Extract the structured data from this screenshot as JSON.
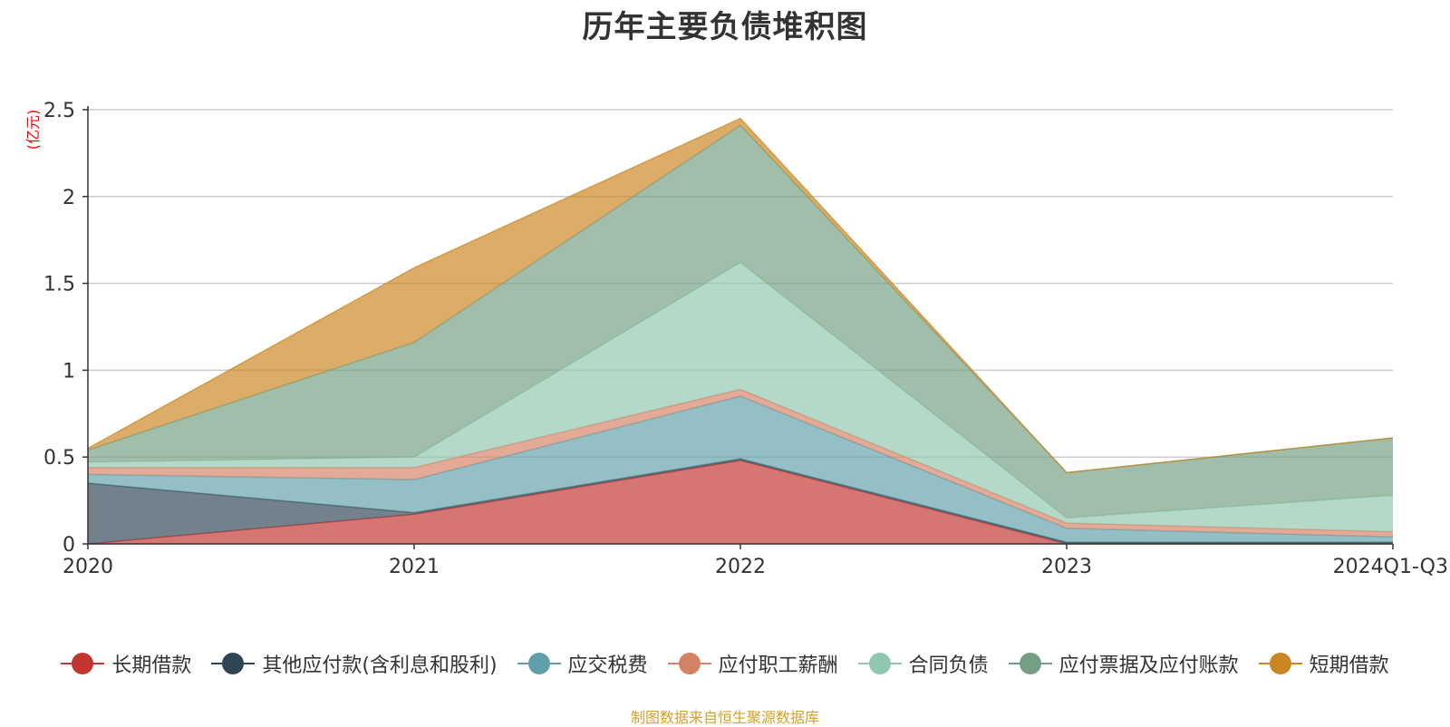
{
  "chart_data": {
    "type": "area",
    "stacked": true,
    "title": "历年主要负债堆积图",
    "ylabel": "(亿元)",
    "xlabel": "",
    "categories": [
      "2020",
      "2021",
      "2022",
      "2023",
      "2024Q1-Q3"
    ],
    "ylim": [
      0,
      2.5
    ],
    "yticks": [
      "0",
      "0.5",
      "1",
      "1.5",
      "2",
      "2.5"
    ],
    "grid": true,
    "legend_position": "bottom",
    "series": [
      {
        "name": "长期借款",
        "color": "#c23531",
        "values": [
          0.0,
          0.17,
          0.48,
          0.0,
          0.0
        ]
      },
      {
        "name": "其他应付款(含利息和股利)",
        "color": "#2f4554",
        "values": [
          0.35,
          0.01,
          0.01,
          0.01,
          0.01
        ]
      },
      {
        "name": "应交税费",
        "color": "#61a0a8",
        "values": [
          0.05,
          0.19,
          0.36,
          0.08,
          0.03
        ]
      },
      {
        "name": "应付职工薪酬",
        "color": "#d48265",
        "values": [
          0.04,
          0.07,
          0.04,
          0.03,
          0.03
        ]
      },
      {
        "name": "合同负债",
        "color": "#91c7ae",
        "values": [
          0.03,
          0.06,
          0.73,
          0.03,
          0.21
        ]
      },
      {
        "name": "应付票据及应付账款",
        "color": "#749f83",
        "values": [
          0.07,
          0.66,
          0.79,
          0.26,
          0.33
        ]
      },
      {
        "name": "短期借款",
        "color": "#ca8622",
        "values": [
          0.01,
          0.43,
          0.04,
          0.0,
          0.0
        ]
      }
    ]
  },
  "source_note": "制图数据来自恒生聚源数据库"
}
